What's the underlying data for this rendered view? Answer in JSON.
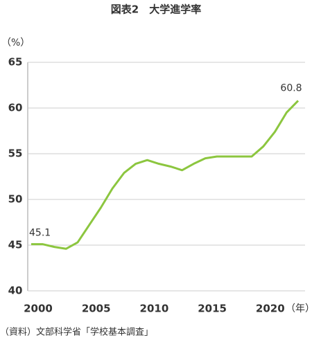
{
  "chart_data": {
    "type": "line",
    "title": "図表2　大学進学率",
    "y_label": "（%）",
    "x_label": "（年）",
    "source": "（資料）文部科学省「学校基本調査」",
    "x": [
      2000,
      2001,
      2002,
      2003,
      2004,
      2005,
      2006,
      2007,
      2008,
      2009,
      2010,
      2011,
      2012,
      2013,
      2014,
      2015,
      2016,
      2017,
      2018,
      2019,
      2020,
      2021,
      2022,
      2023
    ],
    "series": [
      {
        "name": "大学進学率",
        "color": "#8cc63f",
        "values": [
          45.1,
          45.1,
          44.8,
          44.6,
          45.3,
          47.2,
          49.1,
          51.2,
          52.9,
          53.9,
          54.3,
          53.9,
          53.6,
          53.2,
          53.9,
          54.5,
          54.7,
          54.7,
          54.7,
          54.7,
          55.8,
          57.4,
          59.5,
          60.8
        ]
      }
    ],
    "xlim": [
      2000,
      2023
    ],
    "xticks": [
      2000,
      2005,
      2010,
      2015,
      2020
    ],
    "ylim": [
      40,
      65
    ],
    "yticks": [
      40,
      45,
      50,
      55,
      60,
      65
    ],
    "grid": true
  }
}
